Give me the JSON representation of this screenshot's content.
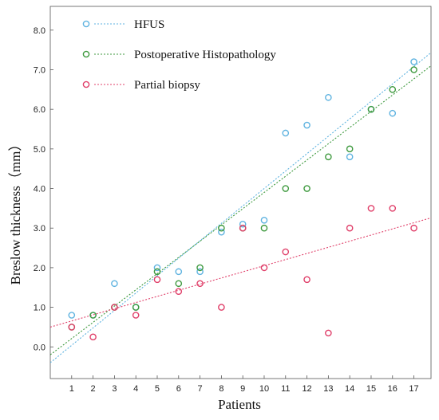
{
  "chart_data": {
    "type": "scatter",
    "xlabel": "Patients",
    "ylabel": "Breslow thickness（mm）",
    "x": [
      1,
      2,
      3,
      4,
      5,
      6,
      7,
      8,
      9,
      10,
      11,
      12,
      13,
      14,
      15,
      16,
      17
    ],
    "xlim": [
      0,
      17.8
    ],
    "ylim": [
      -0.8,
      8.6
    ],
    "x_ticks": [
      "1",
      "2",
      "3",
      "4",
      "5",
      "6",
      "7",
      "8",
      "9",
      "10",
      "11",
      "12",
      "13",
      "14",
      "15",
      "16",
      "17"
    ],
    "y_ticks": [
      "0.0",
      "1.0",
      "2.0",
      "3.0",
      "4.0",
      "5.0",
      "6.0",
      "7.0",
      "8.0"
    ],
    "y_tick_values": [
      0,
      1,
      2,
      3,
      4,
      5,
      6,
      7,
      8
    ],
    "grid": false,
    "legend_position": "top-left",
    "series": [
      {
        "name": "HFUS",
        "color": "#5fb3e0",
        "values": [
          0.8,
          0.8,
          1.6,
          1.0,
          2.0,
          1.9,
          1.9,
          2.9,
          3.1,
          3.2,
          5.4,
          5.6,
          6.3,
          4.8,
          6.0,
          5.9,
          7.2
        ],
        "trendline": [
          -0.4,
          0.44
        ]
      },
      {
        "name": "Postoperative Histopathology",
        "color": "#3f9a3f",
        "values": [
          0.5,
          0.8,
          1.0,
          1.0,
          1.9,
          1.6,
          2.0,
          3.0,
          3.0,
          3.0,
          4.0,
          4.0,
          4.8,
          5.0,
          6.0,
          6.5,
          7.0
        ],
        "trendline": [
          -0.2,
          0.41
        ]
      },
      {
        "name": "Partial biopsy",
        "color": "#e0406a",
        "values": [
          0.5,
          0.25,
          1.0,
          0.8,
          1.7,
          1.4,
          1.6,
          1.0,
          3.0,
          2.0,
          2.4,
          1.7,
          0.35,
          3.0,
          3.5,
          3.5,
          3.0
        ],
        "trendline": [
          0.5,
          0.155
        ]
      }
    ]
  }
}
